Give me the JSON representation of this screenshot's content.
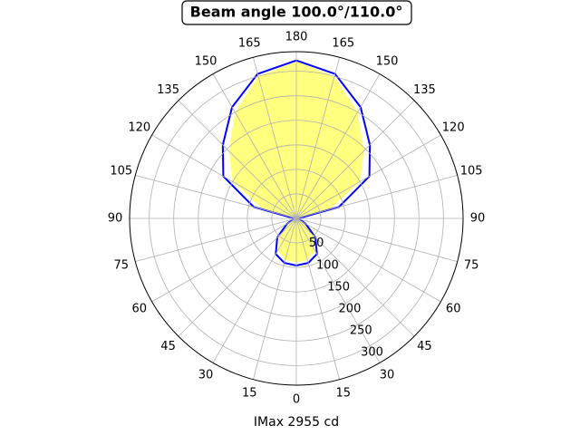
{
  "chart_data": {
    "type": "polar",
    "title": "Beam angle 100.0°/110.0°",
    "xlabel": "IMax 2955 cd",
    "theta": [
      -180,
      -165,
      -150,
      -135,
      -120,
      -105,
      -90,
      -75,
      -60,
      -45,
      -30,
      -15,
      0,
      15,
      30,
      45,
      60,
      75,
      90,
      105,
      120,
      135,
      150,
      165,
      180
    ],
    "series": [
      {
        "color": "#ffff80",
        "fill": true,
        "values": [
          320,
          300,
          250,
          195,
          150,
          70,
          6,
          8,
          18,
          48,
          76,
          88,
          90,
          88,
          76,
          48,
          18,
          8,
          6,
          70,
          150,
          195,
          250,
          300,
          320
        ]
      },
      {
        "color": "#0000ff",
        "fill": false,
        "values": [
          322,
          305,
          262,
          212,
          172,
          90,
          4,
          6,
          22,
          55,
          84,
          94,
          96,
          94,
          84,
          55,
          22,
          6,
          4,
          90,
          172,
          212,
          262,
          305,
          322
        ]
      }
    ],
    "rlim": [
      0,
      340
    ],
    "rticks": [
      50,
      100,
      150,
      200,
      250,
      300
    ],
    "thetaticks": [
      {
        "value": 0,
        "label": "0"
      },
      {
        "value": 15,
        "label": "15"
      },
      {
        "value": 30,
        "label": "30"
      },
      {
        "value": 45,
        "label": "45"
      },
      {
        "value": 60,
        "label": "60"
      },
      {
        "value": 75,
        "label": "75"
      },
      {
        "value": 90,
        "label": "90"
      },
      {
        "value": 105,
        "label": "105"
      },
      {
        "value": 120,
        "label": "120"
      },
      {
        "value": 135,
        "label": "135"
      },
      {
        "value": 150,
        "label": "150"
      },
      {
        "value": 165,
        "label": "165"
      },
      {
        "value": 180,
        "label": "180"
      },
      {
        "value": -15,
        "label": "15"
      },
      {
        "value": -30,
        "label": "30"
      },
      {
        "value": -45,
        "label": "45"
      },
      {
        "value": -60,
        "label": "60"
      },
      {
        "value": -75,
        "label": "75"
      },
      {
        "value": -90,
        "label": "90"
      },
      {
        "value": -105,
        "label": "105"
      },
      {
        "value": -120,
        "label": "120"
      },
      {
        "value": -135,
        "label": "135"
      },
      {
        "value": -150,
        "label": "150"
      },
      {
        "value": -165,
        "label": "165"
      }
    ],
    "grid": true
  }
}
